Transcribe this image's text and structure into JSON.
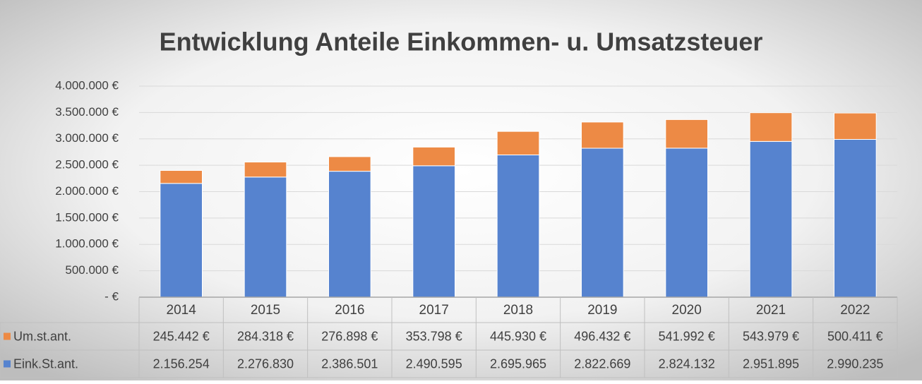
{
  "chart_data": {
    "type": "bar",
    "stacked": true,
    "title": "Entwicklung Anteile Einkommen- u. Umsatzsteuer",
    "categories": [
      "2014",
      "2015",
      "2016",
      "2017",
      "2018",
      "2019",
      "2020",
      "2021",
      "2022"
    ],
    "series": [
      {
        "name": "Um.st.ant.",
        "color": "#ed8a45",
        "values": [
          245442,
          284318,
          276898,
          353798,
          445930,
          496432,
          541992,
          543979,
          500411
        ],
        "value_labels": [
          "245.442 €",
          "284.318 €",
          "276.898 €",
          "353.798 €",
          "445.930 €",
          "496.432 €",
          "541.992 €",
          "543.979 €",
          "500.411 €"
        ]
      },
      {
        "name": "Eink.St.ant.",
        "color": "#5683cf",
        "values": [
          2156254,
          2276830,
          2386501,
          2490595,
          2695965,
          2822669,
          2824132,
          2951895,
          2990235
        ],
        "value_labels": [
          "2.156.254",
          "2.276.830",
          "2.386.501",
          "2.490.595",
          "2.695.965",
          "2.822.669",
          "2.824.132",
          "2.951.895",
          "2.990.235"
        ]
      }
    ],
    "ylim": [
      0,
      4000000
    ],
    "yticks": [
      {
        "value": 0,
        "label": "-  €"
      },
      {
        "value": 500000,
        "label": "500.000 €"
      },
      {
        "value": 1000000,
        "label": "1.000.000 €"
      },
      {
        "value": 1500000,
        "label": "1.500.000 €"
      },
      {
        "value": 2000000,
        "label": "2.000.000 €"
      },
      {
        "value": 2500000,
        "label": "2.500.000 €"
      },
      {
        "value": 3000000,
        "label": "3.000.000 €"
      },
      {
        "value": 3500000,
        "label": "3.500.000 €"
      },
      {
        "value": 4000000,
        "label": "4.000.000 €"
      }
    ],
    "grid": true
  }
}
